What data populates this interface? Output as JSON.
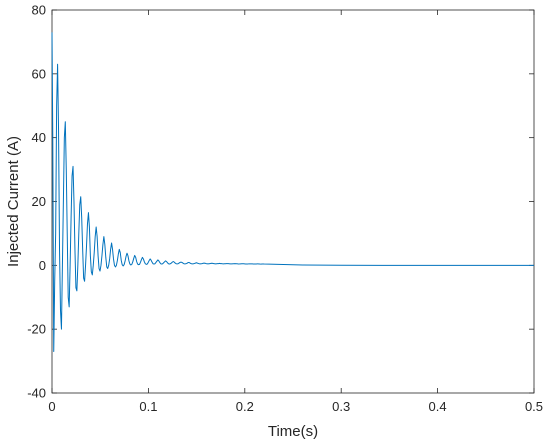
{
  "chart_data": {
    "type": "line",
    "title": "",
    "xlabel": "Time(s)",
    "ylabel": "Injected Current (A)",
    "xlim": [
      0,
      0.5
    ],
    "ylim": [
      -40,
      80
    ],
    "x_ticks": [
      0,
      0.1,
      0.2,
      0.3,
      0.4,
      0.5
    ],
    "x_tick_labels": [
      "0",
      "0.1",
      "0.2",
      "0.3",
      "0.4",
      "0.5"
    ],
    "y_ticks": [
      -40,
      -20,
      0,
      20,
      40,
      60,
      80
    ],
    "y_tick_labels": [
      "-40",
      "-20",
      "0",
      "20",
      "40",
      "60",
      "80"
    ],
    "grid": false,
    "line_color": "#0072BD",
    "series": [
      {
        "x": [
          0,
          0.0008,
          0.0018,
          0.0028,
          0.0038,
          0.0048,
          0.0058,
          0.0068,
          0.0078,
          0.0088,
          0.0098,
          0.0108,
          0.0118,
          0.0128,
          0.0138,
          0.0148,
          0.0158,
          0.0168,
          0.0178,
          0.0188,
          0.0198,
          0.0208,
          0.0218,
          0.0228,
          0.0238,
          0.0248,
          0.0258,
          0.0268,
          0.0278,
          0.0288,
          0.0298,
          0.0308,
          0.0318,
          0.0328,
          0.0338,
          0.0348,
          0.0358,
          0.0368,
          0.0378,
          0.0388,
          0.0398,
          0.0408,
          0.0418,
          0.0428,
          0.0438,
          0.0448,
          0.0458,
          0.0468,
          0.0478,
          0.0488,
          0.0498,
          0.0508,
          0.0518,
          0.0528,
          0.0538,
          0.0548,
          0.0558,
          0.0568,
          0.0578,
          0.0588,
          0.0598,
          0.0608,
          0.0618,
          0.0628,
          0.0638,
          0.0648,
          0.0658,
          0.0668,
          0.0678,
          0.0688,
          0.0698,
          0.0708,
          0.0718,
          0.0728,
          0.0738,
          0.0748,
          0.0758,
          0.0768,
          0.0778,
          0.0788,
          0.0798,
          0.0808,
          0.0818,
          0.0828,
          0.0838,
          0.0848,
          0.0858,
          0.0868,
          0.0878,
          0.0888,
          0.0898,
          0.0908,
          0.0918,
          0.0928,
          0.0938,
          0.0948,
          0.0958,
          0.0968,
          0.0978,
          0.0988,
          0.0998,
          0.1008,
          0.1018,
          0.1028,
          0.1038,
          0.1048,
          0.1058,
          0.1068,
          0.1078,
          0.1088,
          0.1098,
          0.1108,
          0.1118,
          0.1128,
          0.1138,
          0.1148,
          0.1158,
          0.1168,
          0.1178,
          0.1188,
          0.1198,
          0.1208,
          0.1218,
          0.1228,
          0.1238,
          0.1248,
          0.1258,
          0.1268,
          0.1278,
          0.1288,
          0.1298,
          0.1308,
          0.1318,
          0.1328,
          0.1338,
          0.1348,
          0.1358,
          0.1368,
          0.1378,
          0.1388,
          0.1398,
          0.1408,
          0.1418,
          0.1428,
          0.1438,
          0.1448,
          0.1458,
          0.1468,
          0.1478,
          0.1488,
          0.1498,
          0.1508,
          0.1518,
          0.1528,
          0.1538,
          0.1548,
          0.1558,
          0.1568,
          0.1578,
          0.1588,
          0.1598,
          0.1608,
          0.1618,
          0.1628,
          0.1638,
          0.1648,
          0.1658,
          0.1668,
          0.1678,
          0.1688,
          0.1698,
          0.1708,
          0.1718,
          0.1728,
          0.1738,
          0.1748,
          0.1758,
          0.1768,
          0.1778,
          0.1788,
          0.1798,
          0.1808,
          0.1818,
          0.1828,
          0.1838,
          0.1848,
          0.1858,
          0.1868,
          0.1878,
          0.1888,
          0.1898,
          0.1908,
          0.1918,
          0.1928,
          0.1938,
          0.1948,
          0.1958,
          0.1968,
          0.1978,
          0.1988,
          0.1998,
          0.2008,
          0.2018,
          0.2028,
          0.2038,
          0.2048,
          0.2058,
          0.2068,
          0.2078,
          0.2088,
          0.2098,
          0.2108,
          0.2118,
          0.2128,
          0.2138,
          0.2148,
          0.2158,
          0.2168,
          0.2178,
          0.2188,
          0.2198,
          0.22,
          0.24,
          0.26,
          0.28,
          0.3,
          0.35,
          0.4,
          0.45,
          0.5
        ],
        "y": [
          73,
          40,
          -27,
          -5,
          10,
          50,
          63,
          42,
          5,
          -14,
          -20,
          0,
          20,
          40,
          45,
          30,
          10,
          -10,
          -13,
          0,
          15,
          28,
          31,
          20,
          5,
          -7,
          -8,
          0,
          10,
          19,
          21.5,
          15,
          5,
          -4,
          -5,
          0,
          6,
          13,
          16.5,
          12,
          3,
          -2,
          -3,
          0,
          4,
          9,
          12,
          9,
          3,
          -1,
          -1.8,
          0,
          3,
          6.5,
          9,
          6.5,
          2.5,
          -0.5,
          -1,
          0,
          2,
          5,
          7,
          5,
          2,
          0,
          -0.5,
          0,
          1.5,
          3.5,
          5,
          4,
          1.6,
          0.2,
          -0.2,
          0.2,
          1.3,
          2.8,
          3.8,
          3,
          1.4,
          0.4,
          0.1,
          0.3,
          1.1,
          2.2,
          3.1,
          2.5,
          1.2,
          0.4,
          0.2,
          0.3,
          1,
          1.8,
          2.5,
          2,
          1.1,
          0.5,
          0.3,
          0.4,
          0.9,
          1.5,
          2,
          1.6,
          1,
          0.5,
          0.4,
          0.5,
          0.9,
          1.3,
          1.7,
          1.4,
          0.9,
          0.5,
          0.4,
          0.5,
          0.8,
          1.1,
          1.4,
          1.2,
          0.8,
          0.5,
          0.4,
          0.5,
          0.7,
          1,
          1.2,
          1,
          0.7,
          0.5,
          0.45,
          0.5,
          0.7,
          0.9,
          1,
          0.9,
          0.7,
          0.5,
          0.45,
          0.5,
          0.6,
          0.8,
          0.9,
          0.8,
          0.6,
          0.5,
          0.45,
          0.5,
          0.6,
          0.7,
          0.8,
          0.7,
          0.6,
          0.5,
          0.45,
          0.5,
          0.55,
          0.65,
          0.7,
          0.65,
          0.55,
          0.5,
          0.45,
          0.5,
          0.55,
          0.6,
          0.65,
          0.6,
          0.55,
          0.5,
          0.45,
          0.5,
          0.52,
          0.55,
          0.6,
          0.55,
          0.52,
          0.48,
          0.45,
          0.48,
          0.5,
          0.52,
          0.55,
          0.52,
          0.5,
          0.46,
          0.44,
          0.46,
          0.48,
          0.5,
          0.52,
          0.5,
          0.48,
          0.45,
          0.43,
          0.44,
          0.46,
          0.48,
          0.5,
          0.48,
          0.46,
          0.43,
          0.42,
          0.43,
          0.44,
          0.46,
          0.47,
          0.46,
          0.44,
          0.42,
          0.41,
          0.42,
          0.43,
          0.44,
          0.44,
          0.42,
          0.4,
          0.39,
          0.4,
          0.41,
          0.42,
          0.41,
          0.25,
          0.12,
          0.05,
          0.02,
          0,
          0,
          0,
          0
        ]
      }
    ]
  }
}
